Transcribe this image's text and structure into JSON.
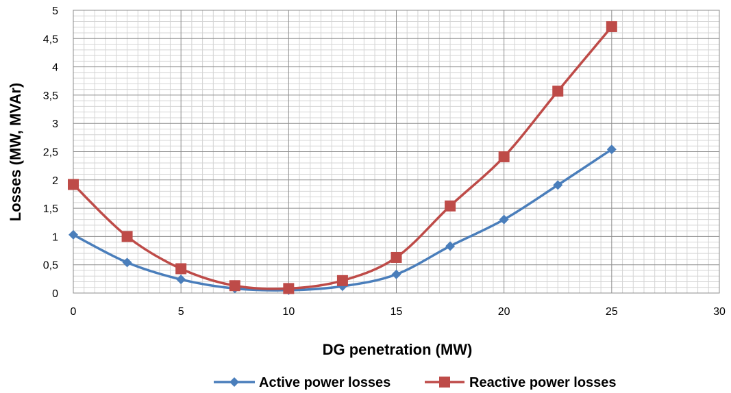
{
  "chart_data": {
    "type": "line",
    "xlabel": "DG penetration (MW)",
    "ylabel": "Losses (MW, MVAr)",
    "xlim": [
      0,
      30
    ],
    "ylim": [
      0,
      5
    ],
    "x_ticks": [
      0,
      5,
      10,
      15,
      20,
      25,
      30
    ],
    "x_tick_labels": [
      "0",
      "5",
      "10",
      "15",
      "20",
      "25",
      "30"
    ],
    "y_ticks": [
      0,
      0.5,
      1,
      1.5,
      2,
      2.5,
      3,
      3.5,
      4,
      4.5,
      5
    ],
    "y_tick_labels": [
      "0",
      "0,5",
      "1",
      "1,5",
      "2",
      "2,5",
      "3",
      "3,5",
      "4",
      "4,5",
      "5"
    ],
    "grid": true,
    "legend_position": "bottom",
    "x": [
      0,
      2.5,
      5,
      7.5,
      10,
      12.5,
      15,
      17.5,
      20,
      22.5,
      25
    ],
    "series": [
      {
        "name": "Active power losses",
        "values": [
          1.03,
          0.54,
          0.24,
          0.08,
          0.05,
          0.12,
          0.33,
          0.83,
          1.3,
          1.91,
          2.54
        ],
        "color": "#4a7ebb",
        "marker": "diamond"
      },
      {
        "name": "Reactive power losses",
        "values": [
          1.92,
          1.0,
          0.43,
          0.13,
          0.08,
          0.22,
          0.63,
          1.54,
          2.41,
          3.57,
          4.71
        ],
        "color": "#be4b48",
        "marker": "square"
      }
    ]
  }
}
